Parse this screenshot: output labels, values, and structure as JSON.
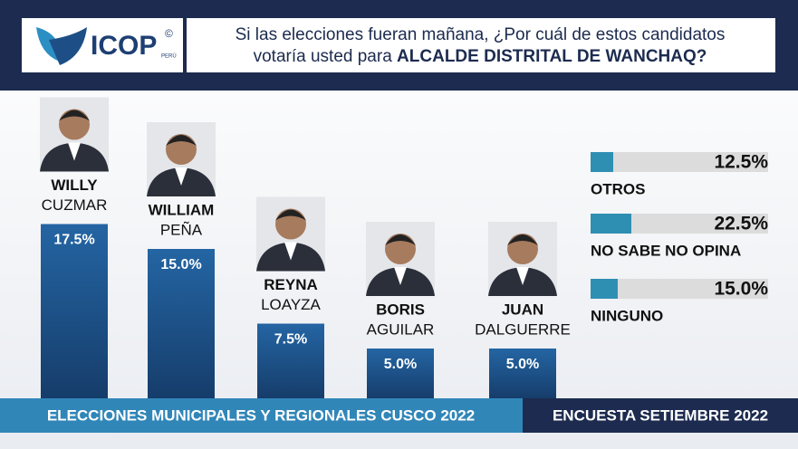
{
  "header": {
    "logo": "ICOP",
    "logo_mark": "©",
    "logo_sub": "PERÚ",
    "question_line1": "Si las elecciones fueran mañana, ¿Por cuál de estos candidatos",
    "question_line2": "votaría usted para",
    "question_bold": "ALCALDE DISTRITAL DE WANCHAQ?"
  },
  "chart_data": [
    {
      "type": "bar",
      "categories": [
        [
          "WILLY",
          "CUZMAR"
        ],
        [
          "WILLIAM",
          "PEÑA"
        ],
        [
          "REYNA",
          "LOAYZA"
        ],
        [
          "BORIS",
          "AGUILAR"
        ],
        [
          "JUAN",
          "DALGUERRE"
        ]
      ],
      "values": [
        17.5,
        15,
        7.5,
        5,
        5
      ],
      "value_labels": [
        "17.5%",
        "15.0%",
        "7.5%",
        "5.0%",
        "5.0%"
      ],
      "color": "#1d4f86"
    },
    {
      "type": "hbar",
      "categories": [
        "OTROS",
        "NO SABE NO OPINA",
        "NINGUNO"
      ],
      "values": [
        12.5,
        22.5,
        15
      ],
      "value_labels": [
        "12.5%",
        "22.5%",
        "15.0%"
      ],
      "color": "#2f8fb3"
    }
  ],
  "footer": {
    "left": "ELECCIONES MUNICIPALES Y REGIONALES CUSCO 2022",
    "right": "ENCUESTA SETIEMBRE 2022"
  }
}
